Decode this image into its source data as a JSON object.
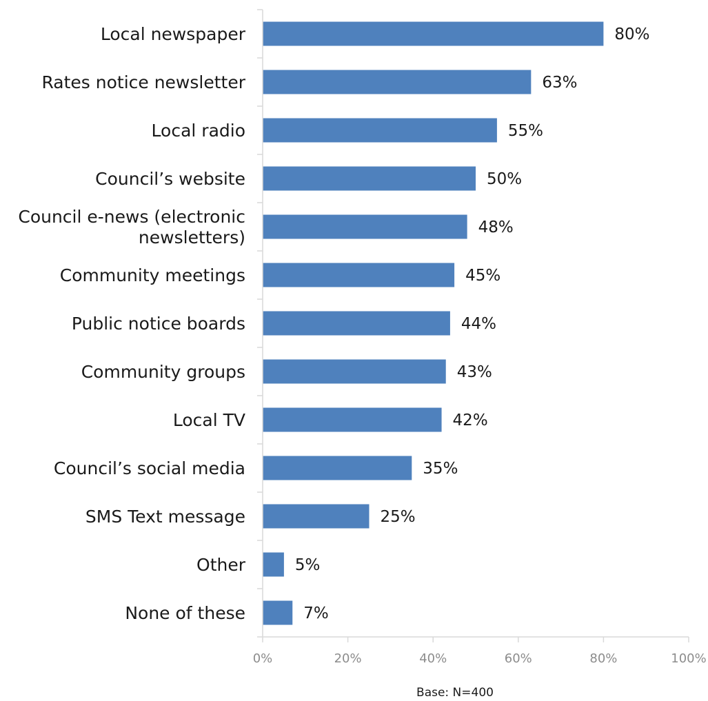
{
  "chart_data": {
    "type": "bar",
    "orientation": "horizontal",
    "categories": [
      "Local newspaper",
      "Rates notice newsletter",
      "Local radio",
      "Council’s website",
      "Council e-news (electronic newsletters)",
      "Community meetings",
      "Public notice boards",
      "Community groups",
      "Local TV",
      "Council’s social media",
      "SMS Text message",
      "Other",
      "None of these"
    ],
    "category_lines": [
      [
        "Local newspaper"
      ],
      [
        "Rates notice newsletter"
      ],
      [
        "Local radio"
      ],
      [
        "Council’s website"
      ],
      [
        "Council e-news (electronic",
        "newsletters)"
      ],
      [
        "Community meetings"
      ],
      [
        "Public notice boards"
      ],
      [
        "Community groups"
      ],
      [
        "Local TV"
      ],
      [
        "Council’s social media"
      ],
      [
        "SMS Text message"
      ],
      [
        "Other"
      ],
      [
        "None of these"
      ]
    ],
    "values": [
      80,
      63,
      55,
      50,
      48,
      45,
      44,
      43,
      42,
      35,
      25,
      5,
      7
    ],
    "data_labels": [
      "80%",
      "63%",
      "55%",
      "50%",
      "48%",
      "45%",
      "44%",
      "43%",
      "42%",
      "35%",
      "25%",
      "5%",
      "7%"
    ],
    "x_ticks": [
      0,
      20,
      40,
      60,
      80,
      100
    ],
    "x_tick_labels": [
      "0%",
      "20%",
      "40%",
      "60%",
      "80%",
      "100%"
    ],
    "xlim": [
      0,
      100
    ],
    "grid": false,
    "legend": "none",
    "bar_color": "#4f81bd",
    "note": "Base: N=400"
  }
}
